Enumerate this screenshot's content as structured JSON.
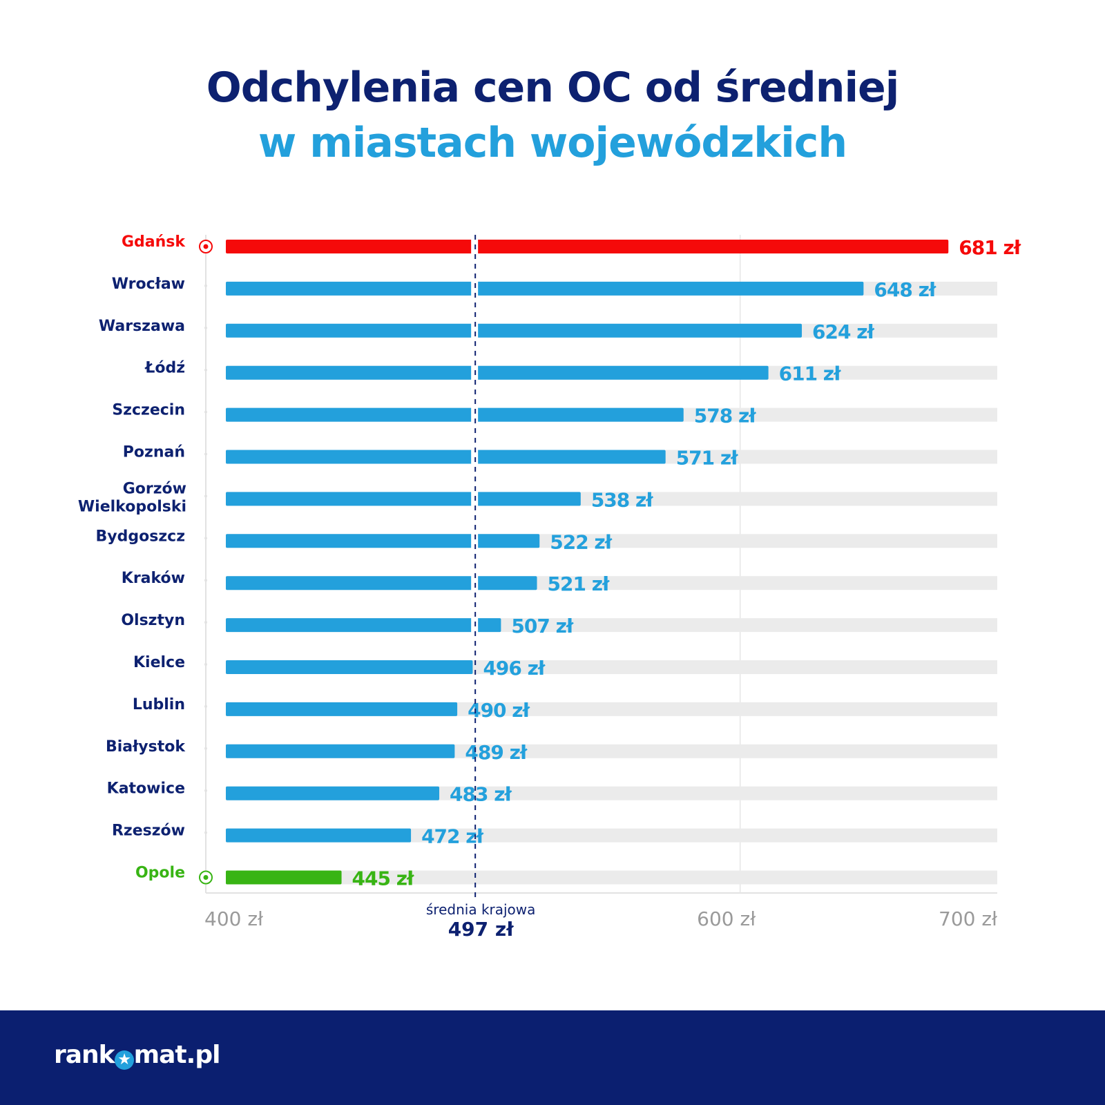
{
  "title_line1": "Odchylenia cen OC od średniej",
  "title_line2": "w miastach wojewódzkich",
  "chart_data": {
    "type": "bar",
    "orientation": "horizontal",
    "categories": [
      "Gdańsk",
      "Wrocław",
      "Warszawa",
      "Łódź",
      "Szczecin",
      "Poznań",
      "Gorzów Wielkopolski",
      "Bydgoszcz",
      "Kraków",
      "Olsztyn",
      "Kielce",
      "Lublin",
      "Białystok",
      "Katowice",
      "Rzeszów",
      "Opole"
    ],
    "values": [
      681,
      648,
      624,
      611,
      578,
      571,
      538,
      522,
      521,
      507,
      496,
      490,
      489,
      483,
      472,
      445
    ],
    "value_labels": [
      "681 zł",
      "648 zł",
      "624 zł",
      "611 zł",
      "578 zł",
      "571 zł",
      "538 zł",
      "522 zł",
      "521 zł",
      "507 zł",
      "496 zł",
      "490 zł",
      "489 zł",
      "483 zł",
      "472 zł",
      "445 zł"
    ],
    "xlim": [
      400,
      700
    ],
    "xticks": [
      400,
      600,
      700
    ],
    "xtick_labels": [
      "400 zł",
      "600 zł",
      "700 zł"
    ],
    "reference_line": {
      "value": 497,
      "label": "średnia krajowa",
      "value_label": "497 zł"
    },
    "highlight": {
      "max": "Gdańsk",
      "min": "Opole"
    },
    "colors": {
      "default": "#23a0dc",
      "max": "#f50a0a",
      "min": "#38b414",
      "track": "#ebebeb",
      "label": "#0d2170",
      "axis_label": "#9a9a9a"
    },
    "grid": "vertical at 600"
  },
  "footer": {
    "logo": "rankomat.pl"
  }
}
